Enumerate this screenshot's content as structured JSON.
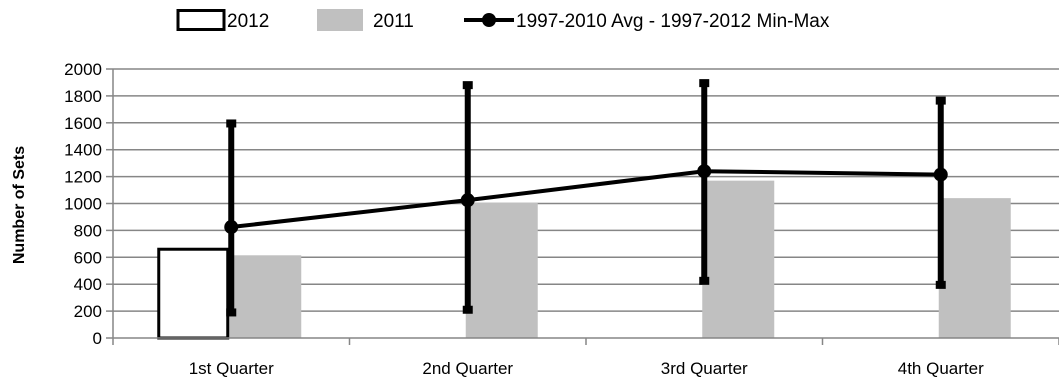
{
  "chart_data": {
    "type": "bar",
    "categories": [
      "1st Quarter",
      "2nd Quarter",
      "3rd Quarter",
      "4th Quarter"
    ],
    "ylabel": "Number of Sets",
    "ylim": [
      0,
      2000
    ],
    "yticks": [
      0,
      200,
      400,
      600,
      800,
      1000,
      1200,
      1400,
      1600,
      1800,
      2000
    ],
    "grid": true,
    "legend_position": "top",
    "series": [
      {
        "name": "2012",
        "kind": "bar",
        "style": "outline",
        "color": "#000000",
        "values": [
          660,
          null,
          null,
          null
        ]
      },
      {
        "name": "2011",
        "kind": "bar",
        "style": "filled",
        "color": "#c0c0c0",
        "values": [
          615,
          1005,
          1170,
          1040
        ]
      },
      {
        "name": "1997-2010 Avg - 1997-2012 Min-Max",
        "kind": "line",
        "color": "#000000",
        "values": [
          825,
          1025,
          1240,
          1215
        ],
        "min": [
          190,
          210,
          425,
          395
        ],
        "max": [
          1595,
          1880,
          1895,
          1765
        ]
      }
    ]
  }
}
